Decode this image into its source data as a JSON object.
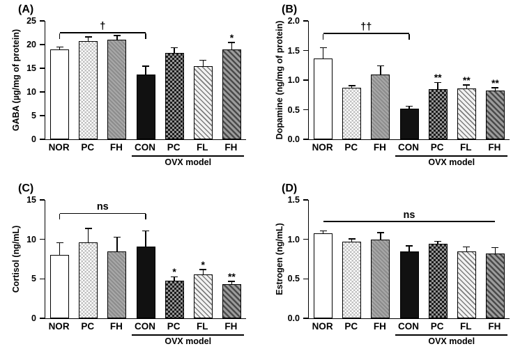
{
  "figure": {
    "background": "#ffffff",
    "axis_color": "#000000",
    "ovx_label": "OVX model",
    "categories": [
      "NOR",
      "PC",
      "FH",
      "CON",
      "PC",
      "FL",
      "FH"
    ],
    "patterns": [
      "white",
      "checker-light",
      "hatch-gray",
      "black",
      "checker-dark",
      "hatch-light",
      "hatch-dark"
    ]
  },
  "chart_data": [
    {
      "type": "bar",
      "panel_label": "(A)",
      "ylabel": "GABA (µg/mg of protein)",
      "ylim": [
        0,
        25
      ],
      "yticks": [
        "0",
        "5",
        "10",
        "15",
        "20",
        "25"
      ],
      "categories": [
        "NOR",
        "PC",
        "FH",
        "CON",
        "PC",
        "FL",
        "FH"
      ],
      "values": [
        19.0,
        20.7,
        21.0,
        13.7,
        18.2,
        15.5,
        19.0
      ],
      "errors": [
        0.4,
        0.8,
        0.8,
        1.6,
        1.0,
        1.1,
        1.3
      ],
      "sig": [
        "",
        "",
        "",
        "",
        "",
        "",
        "*"
      ],
      "bracket": {
        "from": 0,
        "to": 3,
        "label": "†",
        "y": 22.4,
        "ends": true
      },
      "ovx": {
        "from": 3,
        "to": 6
      }
    },
    {
      "type": "bar",
      "panel_label": "(B)",
      "ylabel": "Dopamine (ng/mg of protein)",
      "ylim": [
        0,
        2.0
      ],
      "yticks": [
        "0.0",
        "0.5",
        "1.0",
        "1.5",
        "2.0"
      ],
      "categories": [
        "NOR",
        "PC",
        "FH",
        "CON",
        "PC",
        "FL",
        "FH"
      ],
      "values": [
        1.36,
        0.87,
        1.09,
        0.52,
        0.85,
        0.86,
        0.82
      ],
      "errors": [
        0.18,
        0.03,
        0.14,
        0.03,
        0.1,
        0.05,
        0.04
      ],
      "sig": [
        "",
        "",
        "",
        "",
        "**",
        "**",
        "**"
      ],
      "bracket": {
        "from": 0,
        "to": 3,
        "label": "††",
        "y": 1.78,
        "ends": true
      },
      "ovx": {
        "from": 3,
        "to": 6
      }
    },
    {
      "type": "bar",
      "panel_label": "(C)",
      "ylabel": "Cortisol (ng/mL)",
      "ylim": [
        0,
        15
      ],
      "yticks": [
        "0",
        "5",
        "10",
        "15"
      ],
      "categories": [
        "NOR",
        "PC",
        "FH",
        "CON",
        "PC",
        "FL",
        "FH"
      ],
      "values": [
        8.0,
        9.6,
        8.5,
        9.1,
        4.8,
        5.6,
        4.3
      ],
      "errors": [
        1.5,
        1.7,
        1.7,
        1.9,
        0.4,
        0.5,
        0.3
      ],
      "sig": [
        "",
        "",
        "",
        "",
        "*",
        "*",
        "**"
      ],
      "bracket": {
        "from": 0,
        "to": 3,
        "label": "ns",
        "y": 13.2,
        "ends": true
      },
      "ovx": {
        "from": 3,
        "to": 6
      }
    },
    {
      "type": "bar",
      "panel_label": "(D)",
      "ylabel": "Estrogen (ng/mL)",
      "ylim": [
        0,
        1.5
      ],
      "yticks": [
        "0.0",
        "0.5",
        "1.0",
        "1.5"
      ],
      "categories": [
        "NOR",
        "PC",
        "FH",
        "CON",
        "PC",
        "FL",
        "FH"
      ],
      "values": [
        1.08,
        0.97,
        1.0,
        0.85,
        0.94,
        0.85,
        0.82
      ],
      "errors": [
        0.02,
        0.03,
        0.08,
        0.06,
        0.03,
        0.05,
        0.07
      ],
      "sig": [
        "",
        "",
        "",
        "",
        "",
        "",
        ""
      ],
      "bracket": {
        "from": 0,
        "to": 6,
        "label": "ns",
        "y": 1.22,
        "ends": false
      },
      "ovx": {
        "from": 3,
        "to": 6
      }
    }
  ]
}
